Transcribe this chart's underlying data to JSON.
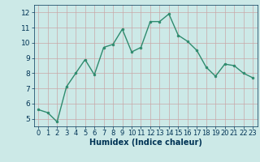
{
  "x": [
    0,
    1,
    2,
    3,
    4,
    5,
    6,
    7,
    8,
    9,
    10,
    11,
    12,
    13,
    14,
    15,
    16,
    17,
    18,
    19,
    20,
    21,
    22,
    23
  ],
  "y": [
    5.6,
    5.4,
    4.8,
    7.1,
    8.0,
    8.9,
    7.9,
    9.7,
    9.9,
    10.9,
    9.4,
    9.7,
    11.4,
    11.4,
    11.9,
    10.5,
    10.1,
    9.5,
    8.4,
    7.8,
    8.6,
    8.5,
    8.0,
    7.7
  ],
  "xlabel": "Humidex (Indice chaleur)",
  "ylim": [
    4.5,
    12.5
  ],
  "xlim": [
    -0.5,
    23.5
  ],
  "yticks": [
    5,
    6,
    7,
    8,
    9,
    10,
    11,
    12
  ],
  "xticks": [
    0,
    1,
    2,
    3,
    4,
    5,
    6,
    7,
    8,
    9,
    10,
    11,
    12,
    13,
    14,
    15,
    16,
    17,
    18,
    19,
    20,
    21,
    22,
    23
  ],
  "line_color": "#2e8b6e",
  "marker_color": "#2e8b6e",
  "bg_color": "#cce9e7",
  "grid_color_major": "#a8d0cc",
  "grid_color_minor": "#b8dbd8",
  "label_color": "#003355",
  "xlabel_fontsize": 7.0,
  "tick_fontsize": 6.0,
  "ytick_fontsize": 6.5
}
